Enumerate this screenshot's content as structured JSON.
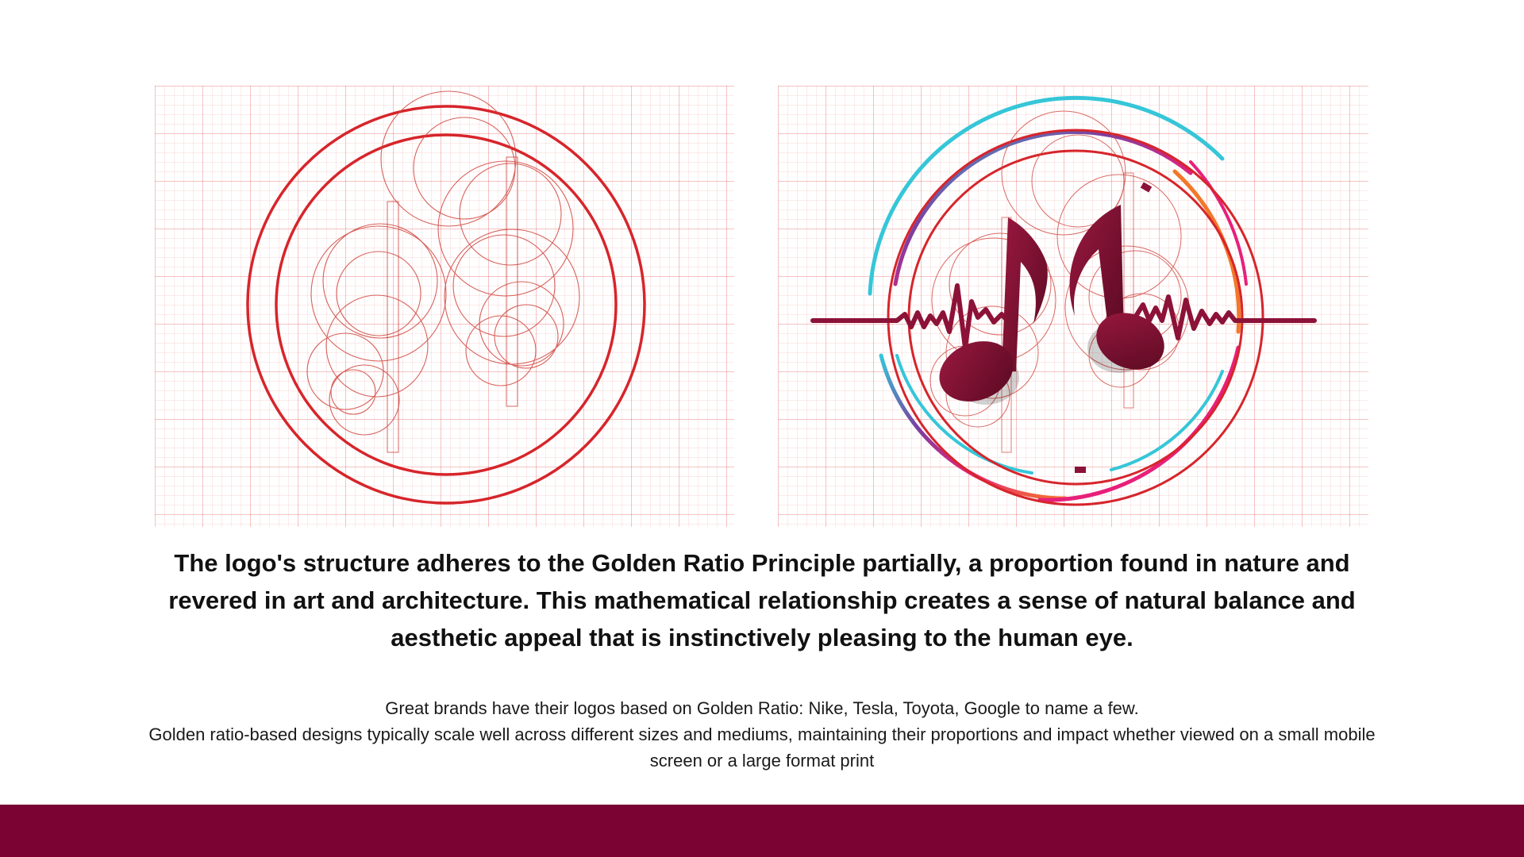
{
  "left_figure": {
    "icon": "golden-ratio-construction-circles"
  },
  "right_figure": {
    "icon": "music-notes-heartbeat-logo-with-golden-ratio-overlay"
  },
  "headline": "The logo's structure adheres to the Golden Ratio Principle partially, a proportion found in nature and revered in art and architecture. This mathematical relationship creates a sense of natural balance and aesthetic appeal that is instinctively pleasing to the human eye.",
  "body": {
    "line1": "Great brands have their logos based on Golden Ratio: Nike, Tesla, Toyota, Google to name a few.",
    "line2": "Golden ratio-based designs typically scale well across different sizes and mediums, maintaining their proportions and impact whether viewed on a small mobile screen or a large format print"
  },
  "colors": {
    "construction_red": "#d6252b",
    "note_maroon": "#7a0f2e",
    "footer_bar": "#7a0333",
    "accent_cyan": "#35c6d8",
    "accent_orange": "#f2782a",
    "accent_purple": "#7a3fa0",
    "accent_pink": "#e8207a"
  }
}
